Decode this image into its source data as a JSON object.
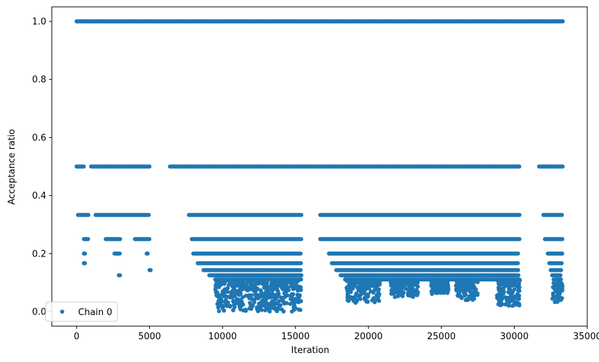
{
  "chart_data": {
    "type": "scatter",
    "title": "",
    "xlabel": "Iteration",
    "ylabel": "Acceptance ratio",
    "xlim": [
      -1700,
      35000
    ],
    "ylim": [
      -0.05,
      1.05
    ],
    "x_ticks": [
      0,
      5000,
      10000,
      15000,
      20000,
      25000,
      30000,
      35000
    ],
    "x_tick_labels": [
      "0",
      "5000",
      "10000",
      "15000",
      "20000",
      "25000",
      "30000",
      "35000"
    ],
    "y_ticks": [
      0.0,
      0.2,
      0.4,
      0.6,
      0.8,
      1.0
    ],
    "y_tick_labels": [
      "0.0",
      "0.2",
      "0.4",
      "0.6",
      "0.8",
      "1.0"
    ],
    "grid": false,
    "legend_position": "lower-left",
    "colors": {
      "series": "#1f77b4"
    },
    "series": [
      {
        "name": "Chain 0",
        "marker": "circle",
        "x_max": 33333,
        "bands": [
          {
            "y": 1.0,
            "x_ranges": [
              [
                0,
                33333
              ]
            ]
          },
          {
            "y": 0.5,
            "x_ranges": [
              [
                0,
                500
              ],
              [
                1000,
                5000
              ],
              [
                6400,
                30400
              ],
              [
                31700,
                33333
              ]
            ]
          },
          {
            "y": 0.3333,
            "x_ranges": [
              [
                100,
                800
              ],
              [
                1300,
                5000
              ],
              [
                7700,
                15400
              ],
              [
                16700,
                30400
              ],
              [
                32000,
                33300
              ]
            ]
          },
          {
            "y": 0.25,
            "x_ranges": [
              [
                500,
                800
              ],
              [
                2000,
                3000
              ],
              [
                4000,
                5000
              ],
              [
                7900,
                15400
              ],
              [
                16700,
                30400
              ],
              [
                32100,
                33300
              ]
            ]
          },
          {
            "y": 0.2,
            "x_ranges": [
              [
                500,
                600
              ],
              [
                2600,
                3000
              ],
              [
                4800,
                4900
              ],
              [
                8000,
                15400
              ],
              [
                17300,
                30300
              ],
              [
                32300,
                33300
              ]
            ]
          },
          {
            "y": 0.1667,
            "x_ranges": [
              [
                500,
                600
              ],
              [
                8300,
                15400
              ],
              [
                17500,
                30300
              ],
              [
                32400,
                33300
              ]
            ]
          },
          {
            "y": 0.1429,
            "x_ranges": [
              [
                5000,
                5100
              ],
              [
                8700,
                15400
              ],
              [
                17800,
                30300
              ],
              [
                32500,
                33200
              ]
            ]
          },
          {
            "y": 0.125,
            "x_ranges": [
              [
                2900,
                3000
              ],
              [
                9100,
                15400
              ],
              [
                18100,
                30300
              ],
              [
                32600,
                33200
              ]
            ]
          },
          {
            "y": 0.1111,
            "x_ranges": [
              [
                9500,
                15400
              ],
              [
                18400,
                30300
              ],
              [
                32700,
                33200
              ]
            ]
          }
        ],
        "clusters": [
          {
            "x_range": [
              9500,
              15400
            ],
            "y_min": 0.0,
            "y_max": 0.11
          },
          {
            "x_range": [
              18500,
              20800
            ],
            "y_min": 0.03,
            "y_max": 0.11
          },
          {
            "x_range": [
              21500,
              23400
            ],
            "y_min": 0.05,
            "y_max": 0.11
          },
          {
            "x_range": [
              24300,
              25500
            ],
            "y_min": 0.06,
            "y_max": 0.11
          },
          {
            "x_range": [
              26000,
              27500
            ],
            "y_min": 0.04,
            "y_max": 0.11
          },
          {
            "x_range": [
              28800,
              30400
            ],
            "y_min": 0.02,
            "y_max": 0.11
          },
          {
            "x_range": [
              32600,
              33300
            ],
            "y_min": 0.03,
            "y_max": 0.1
          }
        ]
      }
    ]
  }
}
